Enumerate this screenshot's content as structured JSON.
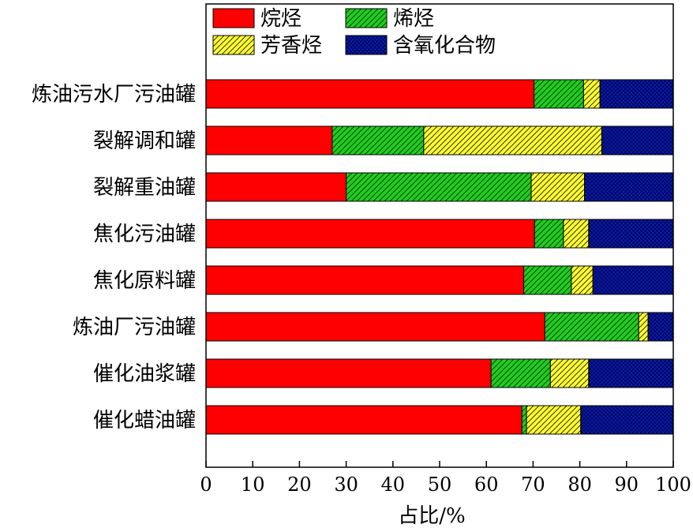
{
  "chart_data": {
    "type": "bar",
    "orientation": "horizontal",
    "stacked": true,
    "xlabel": "占比/%",
    "ylabel": "",
    "xlim": [
      0,
      100
    ],
    "xticks": [
      "0",
      "10",
      "20",
      "30",
      "40",
      "50",
      "60",
      "70",
      "80",
      "90",
      "100"
    ],
    "grid": false,
    "legend_position": "top",
    "categories": [
      "炼油污水厂污油罐",
      "裂解调和罐",
      "裂解重油罐",
      "焦化污油罐",
      "焦化原料罐",
      "炼油厂污油罐",
      "催化油浆罐",
      "催化蜡油罐"
    ],
    "series": [
      {
        "name": "烷烃",
        "color": "#ff0000",
        "pattern": "solid",
        "values": [
          70.2,
          27.0,
          30.0,
          70.3,
          68.0,
          72.5,
          61.0,
          67.6
        ]
      },
      {
        "name": "烯烃",
        "color": "#22cc22",
        "pattern": "diagonal-hatch",
        "values": [
          10.6,
          19.6,
          39.6,
          6.2,
          10.2,
          20.1,
          12.7,
          1.0
        ]
      },
      {
        "name": "芳香烃",
        "color": "#ffff33",
        "pattern": "diagonal-hatch",
        "values": [
          3.5,
          38.1,
          11.4,
          5.4,
          4.6,
          2.0,
          8.2,
          11.6
        ]
      },
      {
        "name": "含氧化合物",
        "color": "#0a1ea8",
        "pattern": "crosshatch",
        "values": [
          15.7,
          15.3,
          19.0,
          18.1,
          17.2,
          5.4,
          18.1,
          19.8
        ]
      }
    ]
  }
}
